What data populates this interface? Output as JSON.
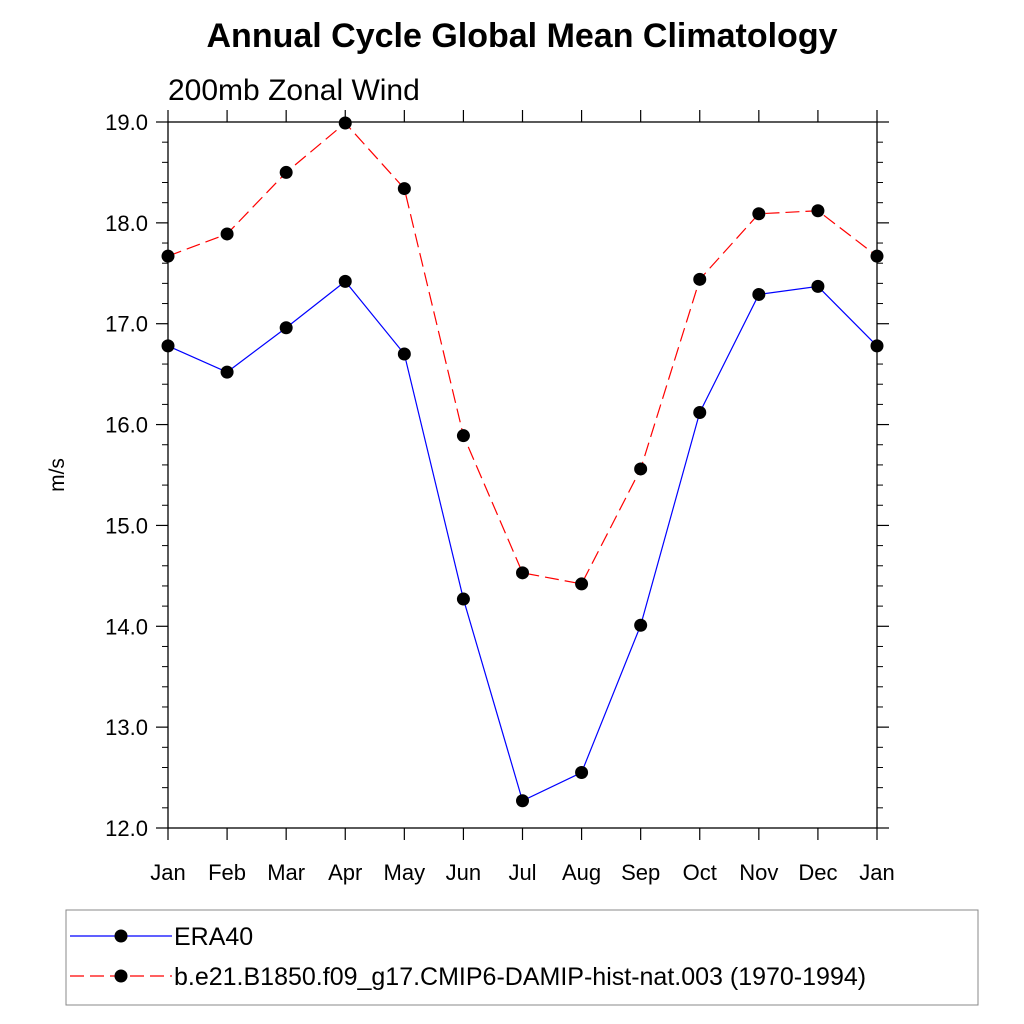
{
  "chart_data": {
    "type": "line",
    "title": "Annual Cycle Global Mean Climatology",
    "subtitle": "200mb Zonal Wind",
    "xlabel": "",
    "ylabel": "m/s",
    "categories": [
      "Jan",
      "Feb",
      "Mar",
      "Apr",
      "May",
      "Jun",
      "Jul",
      "Aug",
      "Sep",
      "Oct",
      "Nov",
      "Dec",
      "Jan"
    ],
    "ylim": [
      12.0,
      19.0
    ],
    "yticks": [
      "12.0",
      "13.0",
      "14.0",
      "15.0",
      "16.0",
      "17.0",
      "18.0",
      "19.0"
    ],
    "grid": false,
    "legend_position": "bottom",
    "series": [
      {
        "name": "ERA40",
        "color": "#0000ff",
        "line_style": "solid",
        "marker": "filled-circle",
        "values": [
          16.78,
          16.52,
          16.96,
          17.42,
          16.7,
          14.27,
          12.27,
          12.55,
          14.01,
          16.12,
          17.29,
          17.37,
          16.78
        ]
      },
      {
        "name": "b.e21.B1850.f09_g17.CMIP6-DAMIP-hist-nat.003 (1970-1994)",
        "color": "#ff0000",
        "line_style": "dashed",
        "marker": "filled-circle",
        "values": [
          17.67,
          17.89,
          18.5,
          18.99,
          18.34,
          15.89,
          14.53,
          14.42,
          15.56,
          17.44,
          18.09,
          18.12,
          17.67
        ]
      }
    ]
  }
}
